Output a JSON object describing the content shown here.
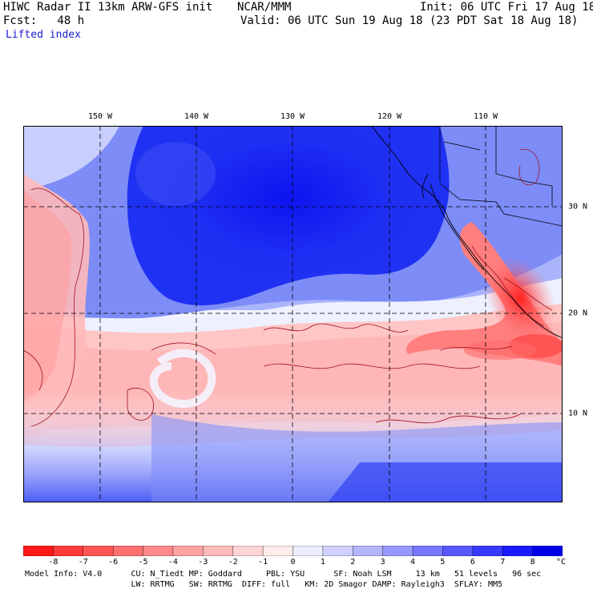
{
  "header": {
    "line1_left": "HIWC Radar II 13km ARW-GFS init",
    "line1_mid": "NCAR/MMM",
    "line1_right": "Init: 06 UTC Fri 17 Aug 18",
    "line2_left": "Fcst:   48 h",
    "line2_right": "Valid: 06 UTC Sun 19 Aug 18 (23 PDT Sat 18 Aug 18)",
    "field_name": "Lifted index"
  },
  "map": {
    "lon_labels": [
      "150 W",
      "140 W",
      "130 W",
      "120 W",
      "110 W"
    ],
    "lat_labels": [
      "30 N",
      "20 N",
      "10 N"
    ],
    "grid_lon": [
      -150,
      -140,
      -130,
      -120,
      -110
    ],
    "grid_lat": [
      30,
      20,
      10
    ],
    "extent": {
      "lon_min": -158,
      "lon_max": -102,
      "lat_min": 2.5,
      "lat_max": 37.5
    }
  },
  "colorbar": {
    "labels": [
      "-8",
      "-7",
      "-6",
      "-5",
      "-4",
      "-3",
      "-2",
      "-1",
      "0",
      "1",
      "2",
      "3",
      "4",
      "5",
      "6",
      "7",
      "8",
      "°C"
    ],
    "colors": [
      "#ff1a1a",
      "#ff3a3a",
      "#ff5555",
      "#ff7070",
      "#ff8a8a",
      "#ffa2a2",
      "#ffbaba",
      "#ffd4d4",
      "#ffecec",
      "#ececff",
      "#d0d0ff",
      "#b4b4ff",
      "#9898ff",
      "#7878ff",
      "#5858ff",
      "#3838ff",
      "#1a1aff",
      "#0000e6"
    ]
  },
  "footer": {
    "line1": "Model Info: V4.0      CU: N_Tiedt MP: Goddard     PBL: YSU      SF: Noah LSM     13 km   51 levels   96 sec",
    "line2": "                      LW: RRTMG   SW: RRTMG  DIFF: full   KM: 2D Smagor DAMP: Rayleigh3  SFLAY: MM5"
  }
}
